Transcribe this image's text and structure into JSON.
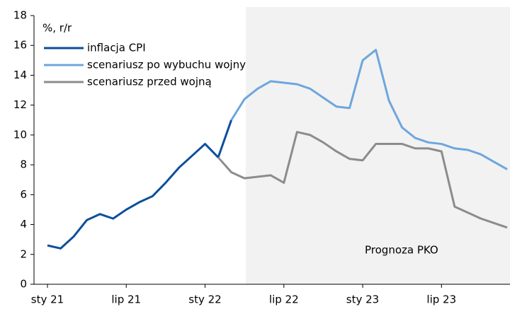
{
  "chart_data": {
    "type": "line",
    "y_label": "%, r/r",
    "annotation": "Prognoza PKO",
    "categories": [
      "sty 21",
      null,
      null,
      null,
      null,
      null,
      "lip 21",
      null,
      null,
      null,
      null,
      null,
      "sty 22",
      null,
      null,
      null,
      null,
      null,
      "lip 22",
      null,
      null,
      null,
      null,
      null,
      "sty 23",
      null,
      null,
      null,
      null,
      null,
      "lip 23",
      null,
      null,
      null,
      null,
      null
    ],
    "series": [
      {
        "name": "inflacja CPI",
        "color": "#0b4f9c",
        "values": [
          2.6,
          2.4,
          3.2,
          4.3,
          4.7,
          4.4,
          5.0,
          5.5,
          5.9,
          6.8,
          7.8,
          8.6,
          9.4,
          8.5,
          11.0,
          null,
          null,
          null,
          null,
          null,
          null,
          null,
          null,
          null,
          null,
          null,
          null,
          null,
          null,
          null,
          null,
          null,
          null,
          null,
          null,
          null
        ]
      },
      {
        "name": "scenariusz po wybuchu wojny",
        "color": "#6ea6dc",
        "values": [
          null,
          null,
          null,
          null,
          null,
          null,
          null,
          null,
          null,
          null,
          null,
          null,
          null,
          null,
          11.0,
          12.4,
          13.1,
          13.6,
          13.5,
          13.4,
          13.1,
          12.5,
          11.9,
          11.8,
          15.0,
          15.7,
          12.3,
          10.5,
          9.8,
          9.5,
          9.4,
          9.1,
          9.0,
          8.7,
          8.2,
          7.7
        ]
      },
      {
        "name": "scenariusz przed wojną",
        "color": "#8c8c8c",
        "values": [
          null,
          null,
          null,
          null,
          null,
          null,
          null,
          null,
          null,
          null,
          null,
          null,
          null,
          8.5,
          7.5,
          7.1,
          7.2,
          7.3,
          6.8,
          10.2,
          10.0,
          9.5,
          8.9,
          8.4,
          8.3,
          9.4,
          9.4,
          9.4,
          9.1,
          9.1,
          8.9,
          5.2,
          4.8,
          4.4,
          4.1,
          3.8
        ]
      }
    ],
    "ylim": [
      0,
      18
    ],
    "yticks": [
      0,
      2,
      4,
      6,
      8,
      10,
      12,
      14,
      16,
      18
    ],
    "grid": false
  }
}
